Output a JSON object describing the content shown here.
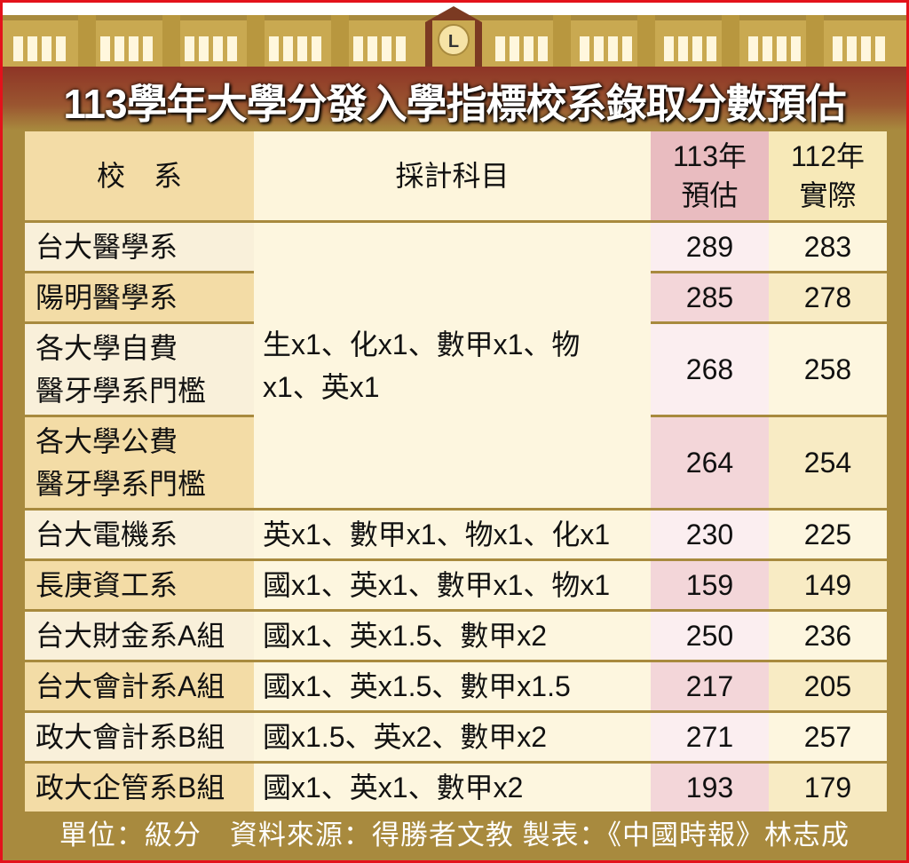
{
  "title": "113學年大學分發入學指標校系錄取分數預估",
  "header": {
    "dept": "校　系",
    "subjects": "採計科目",
    "est": "113年預估",
    "est_l1": "113年",
    "est_l2": "預估",
    "actual_l1": "112年",
    "actual_l2": "實際"
  },
  "rows": [
    {
      "dept": "台大醫學系",
      "subjects": "生x1、化x1、數甲x1、物x1、英x1",
      "est": "289",
      "actual": "283"
    },
    {
      "dept": "陽明醫學系",
      "subjects": "",
      "est": "285",
      "actual": "278"
    },
    {
      "dept": "各大學自費醫牙學系門檻",
      "dept_l1": "各大學自費",
      "dept_l2": "醫牙學系門檻",
      "subjects": "",
      "est": "268",
      "actual": "258"
    },
    {
      "dept": "各大學公費醫牙學系門檻",
      "dept_l1": "各大學公費",
      "dept_l2": "醫牙學系門檻",
      "subjects": "",
      "est": "264",
      "actual": "254"
    },
    {
      "dept": "台大電機系",
      "subjects": "英x1、數甲x1、物x1、化x1",
      "est": "230",
      "actual": "225"
    },
    {
      "dept": "長庚資工系",
      "subjects": "國x1、英x1、數甲x1、物x1",
      "est": "159",
      "actual": "149"
    },
    {
      "dept": "台大財金系A組",
      "subjects": "國x1、英x1.5、數甲x2",
      "est": "250",
      "actual": "236"
    },
    {
      "dept": "台大會計系A組",
      "subjects": "國x1、英x1.5、數甲x1.5",
      "est": "217",
      "actual": "205"
    },
    {
      "dept": "政大會計系B組",
      "subjects": "國x1.5、英x2、數甲x2",
      "est": "271",
      "actual": "257"
    },
    {
      "dept": "政大企管系B組",
      "subjects": "國x1、英x1、數甲x2",
      "est": "193",
      "actual": "179"
    }
  ],
  "footer": "單位：級分　資料來源：得勝者文教  製表：《中國時報》林志成",
  "clock_label": "L",
  "colors": {
    "border": "#e3121b",
    "frame": "#a88a3e",
    "title_band": "#8e3526",
    "est_column": "#e9bcc0"
  }
}
